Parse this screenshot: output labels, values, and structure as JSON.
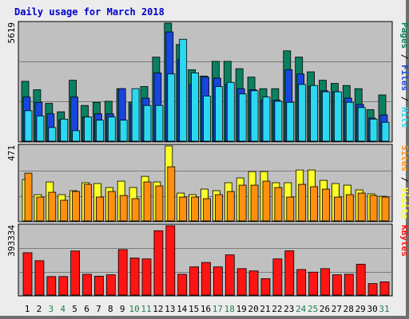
{
  "title": "Daily usage for March 2018",
  "colors": {
    "pages": "#0a8060",
    "files": "#1846dc",
    "hits": "#2cd8f0",
    "visits": "#ffff28",
    "sites": "#ff9010",
    "kbytes": "#ff1414",
    "panel_bg": "#c0c0c0",
    "weekend_label": "#208050"
  },
  "chart_data": [
    {
      "type": "bar",
      "panel": "traffic",
      "ymax_label": "5619",
      "ylim": [
        0,
        5619
      ],
      "categories": [
        "1",
        "2",
        "3",
        "4",
        "5",
        "6",
        "7",
        "8",
        "9",
        "10",
        "11",
        "12",
        "13",
        "14",
        "15",
        "16",
        "17",
        "18",
        "19",
        "20",
        "21",
        "22",
        "23",
        "24",
        "25",
        "26",
        "27",
        "28",
        "29",
        "30",
        "31"
      ],
      "series": [
        {
          "name": "Pages",
          "values": [
            2850,
            2450,
            1800,
            1400,
            2900,
            1700,
            1850,
            1900,
            2500,
            1850,
            2600,
            4000,
            5619,
            4600,
            3400,
            3100,
            3800,
            3800,
            3450,
            3050,
            2500,
            2500,
            4300,
            4000,
            3300,
            2900,
            2750,
            2650,
            2500,
            1500,
            2200
          ]
        },
        {
          "name": "Files",
          "values": [
            2100,
            1850,
            1300,
            1000,
            2100,
            1150,
            1300,
            1300,
            2500,
            1750,
            2050,
            3250,
            5200,
            3900,
            2700,
            3050,
            3000,
            2700,
            2500,
            2450,
            1950,
            1950,
            3400,
            3200,
            2600,
            2400,
            2350,
            2050,
            1750,
            1100,
            1250
          ]
        },
        {
          "name": "Hits",
          "values": [
            1450,
            1200,
            650,
            1050,
            500,
            1150,
            1000,
            1150,
            1000,
            2500,
            1700,
            1700,
            3200,
            4850,
            3250,
            2150,
            2600,
            2800,
            2250,
            2400,
            2100,
            1900,
            1850,
            2700,
            2650,
            2350,
            2350,
            1850,
            1600,
            1050,
            900
          ]
        }
      ]
    },
    {
      "type": "bar",
      "panel": "visits",
      "ymax_label": "471",
      "ylim": [
        0,
        471
      ],
      "categories": [
        "1",
        "2",
        "3",
        "4",
        "5",
        "6",
        "7",
        "8",
        "9",
        "10",
        "11",
        "12",
        "13",
        "14",
        "15",
        "16",
        "17",
        "18",
        "19",
        "20",
        "21",
        "22",
        "23",
        "24",
        "25",
        "26",
        "27",
        "28",
        "29",
        "30",
        "31"
      ],
      "series": [
        {
          "name": "Visits",
          "values": [
            260,
            165,
            245,
            165,
            190,
            240,
            235,
            210,
            250,
            210,
            280,
            245,
            471,
            175,
            165,
            200,
            190,
            240,
            270,
            310,
            310,
            240,
            240,
            320,
            320,
            255,
            235,
            225,
            195,
            170,
            155
          ]
        },
        {
          "name": "Sites",
          "values": [
            300,
            150,
            180,
            130,
            185,
            230,
            150,
            185,
            160,
            140,
            245,
            220,
            340,
            150,
            150,
            140,
            165,
            185,
            225,
            225,
            250,
            210,
            150,
            230,
            215,
            200,
            150,
            165,
            175,
            160,
            150
          ]
        }
      ]
    },
    {
      "type": "bar",
      "panel": "kbytes",
      "ymax_label": "393334",
      "ylim": [
        0,
        393334
      ],
      "categories": [
        "1",
        "2",
        "3",
        "4",
        "5",
        "6",
        "7",
        "8",
        "9",
        "10",
        "11",
        "12",
        "13",
        "14",
        "15",
        "16",
        "17",
        "18",
        "19",
        "20",
        "21",
        "22",
        "23",
        "24",
        "25",
        "26",
        "27",
        "28",
        "29",
        "30",
        "31"
      ],
      "series": [
        {
          "name": "KBytes",
          "values": [
            240000,
            195000,
            105000,
            105000,
            250000,
            118000,
            107000,
            115000,
            258000,
            210000,
            205000,
            365000,
            393334,
            118000,
            160000,
            185000,
            160000,
            228000,
            150000,
            137000,
            93000,
            205000,
            251000,
            145000,
            130000,
            150000,
            115000,
            118000,
            175000,
            65000,
            75000
          ]
        }
      ]
    }
  ],
  "day_labels": [
    {
      "text": "1",
      "weekend": false
    },
    {
      "text": "2",
      "weekend": false
    },
    {
      "text": "3",
      "weekend": true
    },
    {
      "text": "4",
      "weekend": true
    },
    {
      "text": "5",
      "weekend": false
    },
    {
      "text": "6",
      "weekend": false
    },
    {
      "text": "7",
      "weekend": false
    },
    {
      "text": "8",
      "weekend": false
    },
    {
      "text": "9",
      "weekend": false
    },
    {
      "text": "10",
      "weekend": true
    },
    {
      "text": "11",
      "weekend": true
    },
    {
      "text": "12",
      "weekend": false
    },
    {
      "text": "13",
      "weekend": false
    },
    {
      "text": "14",
      "weekend": false
    },
    {
      "text": "15",
      "weekend": false
    },
    {
      "text": "16",
      "weekend": false
    },
    {
      "text": "17",
      "weekend": true
    },
    {
      "text": "18",
      "weekend": true
    },
    {
      "text": "19",
      "weekend": false
    },
    {
      "text": "20",
      "weekend": false
    },
    {
      "text": "21",
      "weekend": false
    },
    {
      "text": "22",
      "weekend": false
    },
    {
      "text": "23",
      "weekend": false
    },
    {
      "text": "24",
      "weekend": true
    },
    {
      "text": "25",
      "weekend": true
    },
    {
      "text": "26",
      "weekend": false
    },
    {
      "text": "27",
      "weekend": false
    },
    {
      "text": "28",
      "weekend": false
    },
    {
      "text": "29",
      "weekend": false
    },
    {
      "text": "30",
      "weekend": false
    },
    {
      "text": "31",
      "weekend": true
    }
  ],
  "legend": {
    "traffic": [
      {
        "text": "Pages",
        "color_key": "pages"
      },
      {
        "text": " / ",
        "color_key": "sep"
      },
      {
        "text": "Files",
        "color_key": "files"
      },
      {
        "text": " / ",
        "color_key": "sep"
      },
      {
        "text": "Hits",
        "color_key": "hits"
      }
    ],
    "visits": [
      {
        "text": "Sites",
        "color_key": "sites"
      },
      {
        "text": " / ",
        "color_key": "sep"
      },
      {
        "text": "Visits",
        "color_key": "visits"
      }
    ],
    "kbytes": [
      {
        "text": "KBytes",
        "color_key": "kbytes"
      }
    ]
  }
}
